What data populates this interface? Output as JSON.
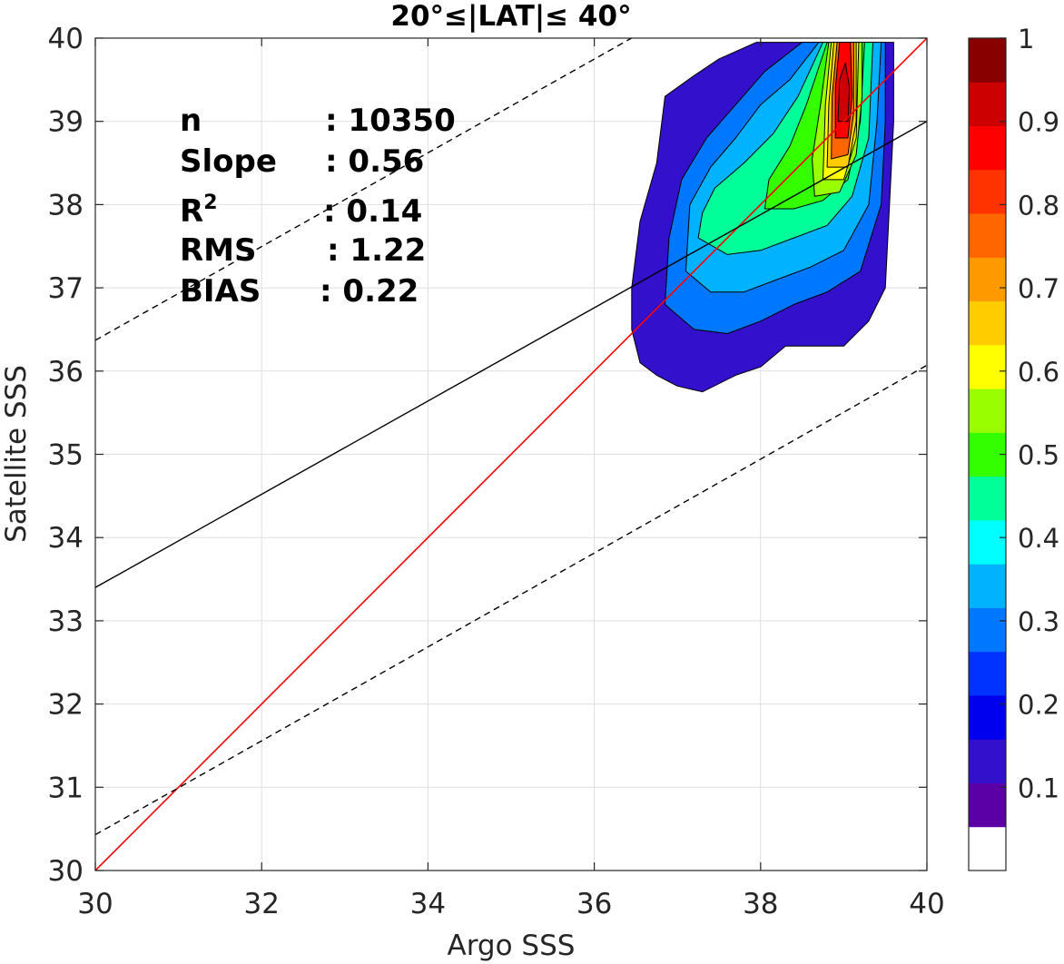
{
  "chart_data": {
    "type": "contour",
    "title": "20°≤|LAT|≤ 40°",
    "xlabel": "Argo SSS",
    "ylabel": "Satellite SSS",
    "xlim": [
      30,
      40
    ],
    "ylim": [
      30,
      40
    ],
    "xticks": [
      "30",
      "32",
      "34",
      "36",
      "38",
      "40"
    ],
    "yticks": [
      "30",
      "31",
      "32",
      "33",
      "34",
      "35",
      "36",
      "37",
      "38",
      "39",
      "40"
    ],
    "grid": true,
    "stats": [
      {
        "label": "n",
        "value": ": 10350"
      },
      {
        "label": "Slope",
        "value": ": 0.56"
      },
      {
        "label": "R",
        "sup": "2",
        "value": ": 0.14"
      },
      {
        "label": "RMS",
        "value": ": 1.22"
      },
      {
        "label": "BIAS",
        "value": ": 0.22"
      }
    ],
    "lines": {
      "one_to_one": {
        "color": "#ff0000",
        "slope": 1,
        "intercept": 0
      },
      "regression": {
        "color": "#000000",
        "slope": 0.56,
        "points": [
          [
            30,
            33.4
          ],
          [
            40,
            39.0
          ]
        ]
      },
      "upper_bound_dashed": {
        "color": "#000000",
        "points": [
          [
            30,
            36.37
          ],
          [
            40,
            42.0
          ]
        ]
      },
      "lower_bound_dashed": {
        "color": "#000000",
        "points": [
          [
            30,
            30.43
          ],
          [
            40,
            36.07
          ]
        ]
      }
    },
    "colorbar": {
      "ticks": [
        "0.1",
        "0.2",
        "0.3",
        "0.4",
        "0.5",
        "0.6",
        "0.7",
        "0.8",
        "0.9",
        "1"
      ],
      "tick_values": [
        0.1,
        0.2,
        0.3,
        0.4,
        0.5,
        0.6,
        0.7,
        0.8,
        0.9,
        1.0
      ],
      "range": [
        0,
        1
      ],
      "colors": [
        "#ffffff",
        "#5b00a6",
        "#3311cc",
        "#0000ee",
        "#0033ff",
        "#0077ff",
        "#00b2ff",
        "#00ffff",
        "#00ff99",
        "#33ff00",
        "#99ff00",
        "#ffff00",
        "#ffcc00",
        "#ff9900",
        "#ff6600",
        "#ff3300",
        "#ff0000",
        "#cc0000",
        "#880000"
      ]
    },
    "density_contours": [
      {
        "level": 0.05,
        "color": "#3311cc",
        "points": [
          [
            36.45,
            36.5
          ],
          [
            36.55,
            36.1
          ],
          [
            36.75,
            35.95
          ],
          [
            37.0,
            35.82
          ],
          [
            37.3,
            35.75
          ],
          [
            37.7,
            35.95
          ],
          [
            38.0,
            36.05
          ],
          [
            38.3,
            36.3
          ],
          [
            38.7,
            36.3
          ],
          [
            39.0,
            36.3
          ],
          [
            39.3,
            36.6
          ],
          [
            39.5,
            37.0
          ],
          [
            39.55,
            38.0
          ],
          [
            39.6,
            39.0
          ],
          [
            39.6,
            39.95
          ],
          [
            37.95,
            39.95
          ],
          [
            37.5,
            39.75
          ],
          [
            37.2,
            39.55
          ],
          [
            36.85,
            39.3
          ],
          [
            36.75,
            38.5
          ],
          [
            36.55,
            37.8
          ],
          [
            36.45,
            37.0
          ]
        ]
      },
      {
        "level": 0.1,
        "color": "#0077ff",
        "points": [
          [
            36.85,
            36.8
          ],
          [
            37.2,
            36.5
          ],
          [
            37.6,
            36.45
          ],
          [
            38.0,
            36.6
          ],
          [
            38.4,
            36.8
          ],
          [
            38.8,
            36.95
          ],
          [
            39.2,
            37.2
          ],
          [
            39.45,
            38.0
          ],
          [
            39.5,
            39.0
          ],
          [
            39.5,
            39.95
          ],
          [
            38.5,
            39.95
          ],
          [
            38.05,
            39.6
          ],
          [
            37.7,
            39.2
          ],
          [
            37.35,
            38.8
          ],
          [
            37.05,
            38.3
          ],
          [
            36.9,
            37.6
          ]
        ]
      },
      {
        "level": 0.2,
        "color": "#00b2ff",
        "points": [
          [
            37.1,
            37.2
          ],
          [
            37.4,
            36.95
          ],
          [
            37.8,
            36.95
          ],
          [
            38.2,
            37.1
          ],
          [
            38.6,
            37.25
          ],
          [
            39.0,
            37.45
          ],
          [
            39.3,
            38.0
          ],
          [
            39.4,
            39.0
          ],
          [
            39.45,
            39.95
          ],
          [
            38.7,
            39.95
          ],
          [
            38.35,
            39.5
          ],
          [
            38.0,
            39.2
          ],
          [
            37.7,
            38.8
          ],
          [
            37.4,
            38.45
          ],
          [
            37.15,
            38.0
          ]
        ]
      },
      {
        "level": 0.3,
        "color": "#00ff99",
        "points": [
          [
            37.25,
            37.6
          ],
          [
            37.6,
            37.4
          ],
          [
            38.0,
            37.45
          ],
          [
            38.4,
            37.6
          ],
          [
            38.8,
            37.75
          ],
          [
            39.1,
            38.1
          ],
          [
            39.3,
            38.8
          ],
          [
            39.35,
            39.95
          ],
          [
            38.75,
            39.95
          ],
          [
            38.45,
            39.3
          ],
          [
            38.15,
            38.85
          ],
          [
            37.8,
            38.5
          ],
          [
            37.45,
            38.2
          ],
          [
            37.3,
            37.9
          ]
        ]
      },
      {
        "level": 0.4,
        "color": "#33ff00",
        "points": [
          [
            38.05,
            37.95
          ],
          [
            38.4,
            37.95
          ],
          [
            38.75,
            38.05
          ],
          [
            39.05,
            38.3
          ],
          [
            39.2,
            39.0
          ],
          [
            39.25,
            39.95
          ],
          [
            38.8,
            39.95
          ],
          [
            38.55,
            39.2
          ],
          [
            38.35,
            38.7
          ],
          [
            38.1,
            38.3
          ]
        ]
      },
      {
        "level": 0.5,
        "color": "#99ff00",
        "points": [
          [
            38.65,
            38.1
          ],
          [
            38.95,
            38.15
          ],
          [
            39.15,
            38.6
          ],
          [
            39.22,
            39.3
          ],
          [
            39.22,
            39.95
          ],
          [
            38.82,
            39.95
          ],
          [
            38.72,
            39.2
          ],
          [
            38.62,
            38.55
          ]
        ]
      },
      {
        "level": 0.6,
        "color": "#ffff00",
        "points": [
          [
            38.75,
            38.3
          ],
          [
            39.0,
            38.3
          ],
          [
            39.15,
            38.8
          ],
          [
            39.18,
            39.95
          ],
          [
            38.85,
            39.95
          ],
          [
            38.78,
            39.2
          ]
        ]
      },
      {
        "level": 0.7,
        "color": "#ffcc00",
        "points": [
          [
            38.8,
            38.45
          ],
          [
            39.05,
            38.45
          ],
          [
            39.15,
            39.0
          ],
          [
            39.15,
            39.95
          ],
          [
            38.88,
            39.95
          ],
          [
            38.82,
            39.2
          ]
        ]
      },
      {
        "level": 0.8,
        "color": "#ff6600",
        "points": [
          [
            38.85,
            38.55
          ],
          [
            39.05,
            38.6
          ],
          [
            39.12,
            39.1
          ],
          [
            39.12,
            39.95
          ],
          [
            38.92,
            39.95
          ],
          [
            38.86,
            39.3
          ]
        ]
      },
      {
        "level": 0.9,
        "color": "#ff0000",
        "points": [
          [
            38.9,
            38.8
          ],
          [
            39.05,
            38.8
          ],
          [
            39.1,
            39.3
          ],
          [
            39.08,
            39.95
          ],
          [
            38.95,
            39.95
          ],
          [
            38.9,
            39.4
          ]
        ]
      },
      {
        "level": 0.95,
        "color": "#cc0000",
        "points": [
          [
            38.93,
            39.0
          ],
          [
            39.05,
            39.0
          ],
          [
            39.07,
            39.4
          ],
          [
            39.02,
            39.7
          ],
          [
            38.95,
            39.5
          ]
        ]
      }
    ]
  }
}
